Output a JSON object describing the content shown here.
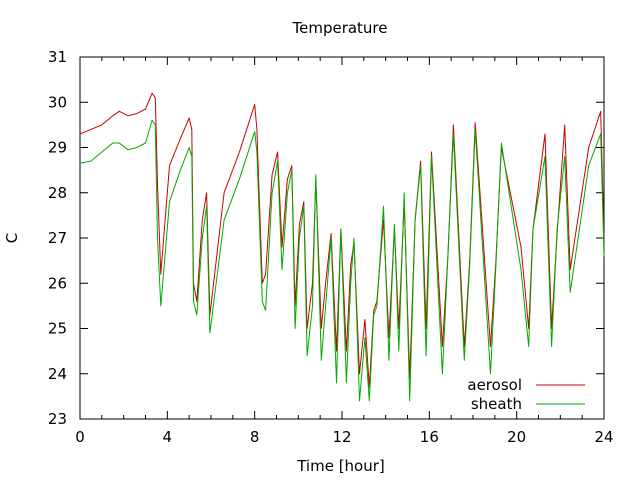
{
  "chart_data": {
    "type": "line",
    "title": "Temperature",
    "xlabel": "Time [hour]",
    "ylabel": "C",
    "xlim": [
      0,
      24
    ],
    "ylim": [
      23,
      31
    ],
    "xticks": [
      0,
      4,
      8,
      12,
      16,
      20,
      24
    ],
    "yticks": [
      23,
      24,
      25,
      26,
      27,
      28,
      29,
      30,
      31
    ],
    "grid": false,
    "legend_position": "bottom-right",
    "series": [
      {
        "name": "aerosol",
        "color": "#cc0000",
        "x": [
          0,
          0.5,
          1.0,
          1.5,
          1.8,
          2.2,
          2.6,
          3.0,
          3.3,
          3.45,
          3.55,
          3.7,
          4.1,
          4.6,
          5.0,
          5.12,
          5.2,
          5.35,
          5.6,
          5.8,
          5.95,
          6.6,
          7.3,
          8.0,
          8.1,
          8.35,
          8.5,
          8.8,
          9.05,
          9.25,
          9.5,
          9.7,
          9.85,
          10.05,
          10.25,
          10.4,
          10.65,
          10.8,
          11.05,
          11.25,
          11.5,
          11.75,
          11.95,
          12.2,
          12.4,
          12.55,
          12.8,
          13.05,
          13.25,
          13.45,
          13.6,
          13.9,
          14.15,
          14.4,
          14.6,
          14.85,
          15.1,
          15.35,
          15.6,
          15.85,
          16.1,
          16.6,
          16.85,
          17.1,
          17.6,
          17.85,
          18.1,
          18.8,
          19.05,
          19.3,
          20.2,
          20.55,
          20.75,
          21.3,
          21.6,
          21.85,
          22.2,
          22.45,
          23.3,
          23.85,
          24.0
        ],
        "y": [
          29.3,
          29.4,
          29.5,
          29.7,
          29.8,
          29.7,
          29.75,
          29.85,
          30.2,
          30.1,
          28.2,
          26.2,
          28.6,
          29.2,
          29.65,
          29.4,
          26.0,
          25.6,
          27.4,
          28.0,
          25.3,
          28.0,
          28.9,
          29.95,
          29.4,
          26.0,
          26.2,
          28.4,
          28.9,
          26.8,
          28.3,
          28.6,
          25.5,
          27.3,
          27.8,
          25.0,
          26.0,
          28.3,
          25.0,
          26.0,
          27.1,
          24.5,
          27.2,
          24.5,
          26.4,
          26.9,
          24.0,
          25.2,
          23.7,
          25.4,
          25.6,
          27.4,
          24.8,
          27.2,
          25.0,
          27.8,
          23.9,
          27.4,
          28.7,
          25.0,
          28.9,
          24.6,
          26.6,
          29.5,
          24.6,
          26.5,
          29.55,
          24.6,
          26.5,
          29.0,
          26.8,
          25.0,
          27.2,
          29.3,
          25.0,
          27.1,
          29.5,
          26.3,
          29.0,
          29.8,
          26.9
        ]
      },
      {
        "name": "sheath",
        "color": "#00aa00",
        "x": [
          0,
          0.5,
          1.0,
          1.5,
          1.8,
          2.2,
          2.6,
          3.0,
          3.3,
          3.45,
          3.55,
          3.7,
          4.1,
          4.6,
          5.0,
          5.12,
          5.2,
          5.35,
          5.6,
          5.8,
          5.95,
          6.6,
          7.3,
          8.0,
          8.1,
          8.35,
          8.5,
          8.8,
          9.05,
          9.25,
          9.5,
          9.7,
          9.85,
          10.05,
          10.25,
          10.4,
          10.65,
          10.8,
          11.05,
          11.25,
          11.5,
          11.75,
          11.95,
          12.2,
          12.4,
          12.55,
          12.8,
          13.05,
          13.25,
          13.45,
          13.6,
          13.9,
          14.15,
          14.4,
          14.6,
          14.85,
          15.1,
          15.35,
          15.6,
          15.85,
          16.1,
          16.6,
          16.85,
          17.1,
          17.6,
          17.85,
          18.1,
          18.8,
          19.05,
          19.3,
          20.2,
          20.55,
          20.75,
          21.3,
          21.6,
          21.85,
          22.2,
          22.45,
          23.3,
          23.85,
          24.0
        ],
        "y": [
          28.65,
          28.7,
          28.9,
          29.1,
          29.1,
          28.95,
          29.0,
          29.1,
          29.6,
          29.5,
          27.0,
          25.5,
          27.8,
          28.5,
          29.0,
          28.8,
          25.6,
          25.3,
          27.0,
          27.7,
          24.9,
          27.4,
          28.3,
          29.35,
          28.9,
          25.6,
          25.4,
          28.0,
          28.7,
          26.3,
          28.0,
          28.5,
          25.0,
          27.0,
          27.7,
          24.4,
          25.5,
          28.4,
          24.3,
          25.5,
          27.0,
          23.8,
          27.2,
          23.8,
          26.0,
          27.0,
          23.4,
          24.8,
          23.4,
          25.3,
          25.5,
          27.7,
          24.3,
          27.3,
          24.5,
          28.0,
          23.4,
          27.4,
          28.6,
          24.4,
          28.8,
          24.0,
          26.6,
          29.3,
          24.3,
          26.4,
          29.4,
          24.0,
          26.4,
          29.1,
          26.3,
          24.6,
          27.2,
          28.8,
          24.6,
          27.2,
          28.8,
          25.8,
          28.6,
          29.3,
          26.6
        ]
      }
    ]
  }
}
